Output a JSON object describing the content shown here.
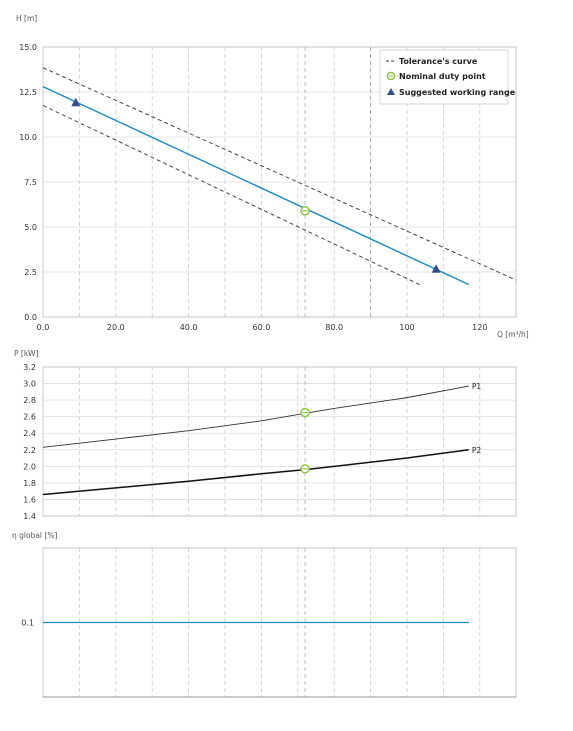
{
  "chart_data": [
    {
      "type": "line",
      "ylabel": "H [m]",
      "xlabel": "Q [m³/h]",
      "xlim": [
        0,
        130
      ],
      "ylim": [
        0,
        15
      ],
      "x_ticks": [
        "0.0",
        "20.0",
        "40.0",
        "60.0",
        "80.0",
        "100",
        "120"
      ],
      "y_ticks": [
        "0.0",
        "2.5",
        "5.0",
        "7.5",
        "10.0",
        "12.5",
        "15.0"
      ],
      "grid": true,
      "legend_position": "top-right",
      "legend": {
        "tolerance": "Tolerance's curve",
        "nominal": "Nominal duty point",
        "range": "Suggested working range"
      },
      "series": [
        {
          "x": [
            0,
            117
          ],
          "y": [
            12.8,
            1.8
          ],
          "color": "#1a8ac6"
        },
        {
          "x": [
            0,
            130
          ],
          "y": [
            13.85,
            2.05
          ],
          "color": "#333333",
          "dashed": true
        },
        {
          "x": [
            0,
            104
          ],
          "y": [
            11.75,
            1.75
          ],
          "color": "#333333",
          "dashed": true
        }
      ],
      "nominal_point": {
        "x": 72,
        "y": 5.9
      },
      "working_range": [
        {
          "x": 9,
          "y": 11.9
        },
        {
          "x": 108,
          "y": 2.65
        }
      ]
    },
    {
      "type": "line",
      "ylabel": "P [kW]",
      "xlim": [
        0,
        130
      ],
      "ylim": [
        1.4,
        3.2
      ],
      "y_ticks": [
        "1.4",
        "1.6",
        "1.8",
        "2.0",
        "2.2",
        "2.4",
        "2.6",
        "2.8",
        "3.0",
        "3.2"
      ],
      "grid": true,
      "series": [
        {
          "name": "P1",
          "x": [
            0,
            20,
            40,
            60,
            72,
            80,
            100,
            117
          ],
          "y": [
            2.23,
            2.33,
            2.43,
            2.55,
            2.64,
            2.7,
            2.83,
            2.97
          ],
          "color": "#333333"
        },
        {
          "name": "P2",
          "x": [
            0,
            20,
            40,
            60,
            72,
            80,
            100,
            117
          ],
          "y": [
            1.66,
            1.74,
            1.82,
            1.91,
            1.96,
            2.0,
            2.1,
            2.2
          ],
          "color": "#111111"
        }
      ],
      "nominal_points": [
        {
          "x": 72,
          "y": 2.65
        },
        {
          "x": 72,
          "y": 1.97
        }
      ]
    },
    {
      "type": "line",
      "ylabel": "η global [%]",
      "xlim": [
        0,
        130
      ],
      "ylim": [
        0,
        0.2
      ],
      "y_ticks": [
        "0.1"
      ],
      "y_tick_values": [
        0.1
      ],
      "grid": true,
      "series": [
        {
          "x": [
            0,
            117
          ],
          "y": [
            0.1,
            0.1
          ],
          "color": "#1a8ac6"
        }
      ]
    }
  ]
}
